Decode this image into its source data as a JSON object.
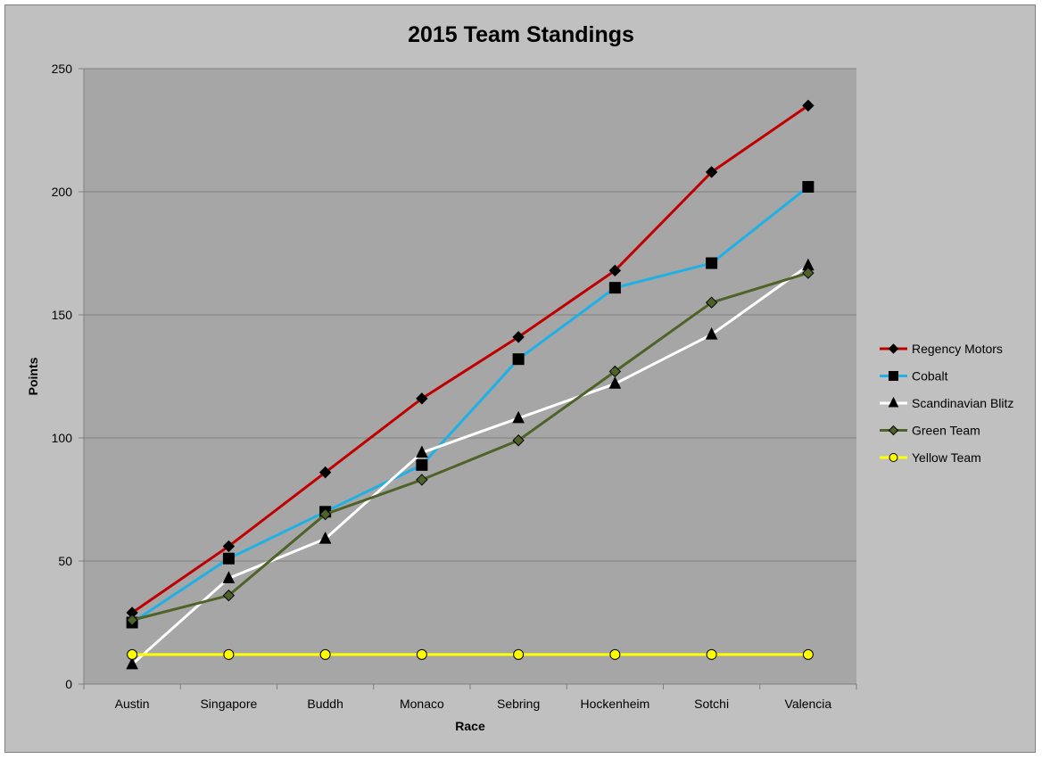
{
  "chart_data": {
    "type": "line",
    "title": "2015 Team Standings",
    "xlabel": "Race",
    "ylabel": "Points",
    "ylim": [
      0,
      250
    ],
    "yticks": [
      0,
      50,
      100,
      150,
      200,
      250
    ],
    "categories": [
      "Austin",
      "Singapore",
      "Buddh",
      "Monaco",
      "Sebring",
      "Hockenheim",
      "Sotchi",
      "Valencia"
    ],
    "grid": true,
    "legend_position": "right",
    "plot_background": "#a6a6a6",
    "chart_background": "#c0c0c0",
    "series": [
      {
        "name": "Regency Motors",
        "color": "#c00000",
        "marker": "diamond",
        "marker_color": "#000000",
        "values": [
          29,
          56,
          86,
          116,
          141,
          168,
          208,
          235
        ]
      },
      {
        "name": "Cobalt",
        "color": "#1fb0e6",
        "marker": "square",
        "marker_color": "#000000",
        "values": [
          25,
          51,
          70,
          89,
          132,
          161,
          171,
          202
        ]
      },
      {
        "name": "Scandinavian Blitz",
        "color": "#ffffff",
        "marker": "triangle",
        "marker_color": "#000000",
        "values": [
          8,
          43,
          59,
          94,
          108,
          122,
          142,
          170
        ]
      },
      {
        "name": "Green Team",
        "color": "#4f6228",
        "marker": "diamond",
        "marker_color": "#4f6228",
        "values": [
          26,
          36,
          69,
          83,
          99,
          127,
          155,
          167
        ]
      },
      {
        "name": "Yellow Team",
        "color": "#ffff00",
        "marker": "circle",
        "marker_color": "#ffff00",
        "values": [
          12,
          12,
          12,
          12,
          12,
          12,
          12,
          12
        ]
      }
    ]
  }
}
